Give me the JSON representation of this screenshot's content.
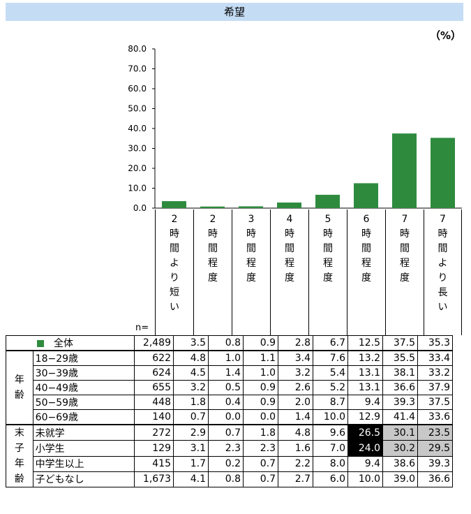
{
  "header": {
    "title": "希望",
    "unit": "（%）"
  },
  "chart_data": {
    "type": "bar",
    "categories": [
      "2時間より短い",
      "2時間程度",
      "3時間程度",
      "4時間程度",
      "5時間程度",
      "6時間程度",
      "7時間程度",
      "7時間より長い"
    ],
    "values": [
      3.5,
      0.8,
      0.9,
      2.8,
      6.7,
      12.5,
      37.5,
      35.3
    ],
    "yticks": [
      "0.0",
      "10.0",
      "20.0",
      "30.0",
      "40.0",
      "50.0",
      "60.0",
      "70.0",
      "80.0"
    ],
    "ylim": [
      0,
      80
    ],
    "bar_color": "#2e8b3e"
  },
  "table": {
    "n_label": "n=",
    "total": {
      "label": "全体",
      "n": "2,489",
      "values": [
        "3.5",
        "0.8",
        "0.9",
        "2.8",
        "6.7",
        "12.5",
        "37.5",
        "35.3"
      ]
    },
    "groups": [
      {
        "label": "年齢",
        "rows": [
          {
            "label": "18−29歳",
            "n": "622",
            "values": [
              "4.8",
              "1.0",
              "1.1",
              "3.4",
              "7.6",
              "13.2",
              "35.5",
              "33.4"
            ]
          },
          {
            "label": "30−39歳",
            "n": "624",
            "values": [
              "4.5",
              "1.4",
              "1.0",
              "3.2",
              "5.4",
              "13.1",
              "38.1",
              "33.2"
            ]
          },
          {
            "label": "40−49歳",
            "n": "655",
            "values": [
              "3.2",
              "0.5",
              "0.9",
              "2.6",
              "5.2",
              "13.1",
              "36.6",
              "37.9"
            ]
          },
          {
            "label": "50−59歳",
            "n": "448",
            "values": [
              "1.8",
              "0.4",
              "0.9",
              "2.0",
              "8.7",
              "9.4",
              "39.3",
              "37.5"
            ]
          },
          {
            "label": "60−69歳",
            "n": "140",
            "values": [
              "0.7",
              "0.0",
              "0.0",
              "1.4",
              "10.0",
              "12.9",
              "41.4",
              "33.6"
            ]
          }
        ]
      },
      {
        "label": "末子年齢",
        "rows": [
          {
            "label": "未就学",
            "n": "272",
            "values": [
              "2.9",
              "0.7",
              "1.8",
              "4.8",
              "9.6",
              "26.5",
              "30.1",
              "23.5"
            ]
          },
          {
            "label": "小学生",
            "n": "129",
            "values": [
              "3.1",
              "2.3",
              "2.3",
              "1.6",
              "7.0",
              "24.0",
              "30.2",
              "29.5"
            ]
          },
          {
            "label": "中学生以上",
            "n": "415",
            "values": [
              "1.7",
              "0.2",
              "0.7",
              "2.2",
              "8.0",
              "9.4",
              "38.6",
              "39.3"
            ]
          },
          {
            "label": "子どもなし",
            "n": "1,673",
            "values": [
              "4.1",
              "0.8",
              "0.7",
              "2.7",
              "6.0",
              "10.0",
              "39.0",
              "36.6"
            ]
          }
        ]
      }
    ],
    "highlights": {
      "dark": [
        [
          0,
          5
        ],
        [
          1,
          5
        ]
      ],
      "gray": [
        [
          0,
          6
        ],
        [
          0,
          7
        ],
        [
          1,
          6
        ],
        [
          1,
          7
        ]
      ]
    }
  }
}
